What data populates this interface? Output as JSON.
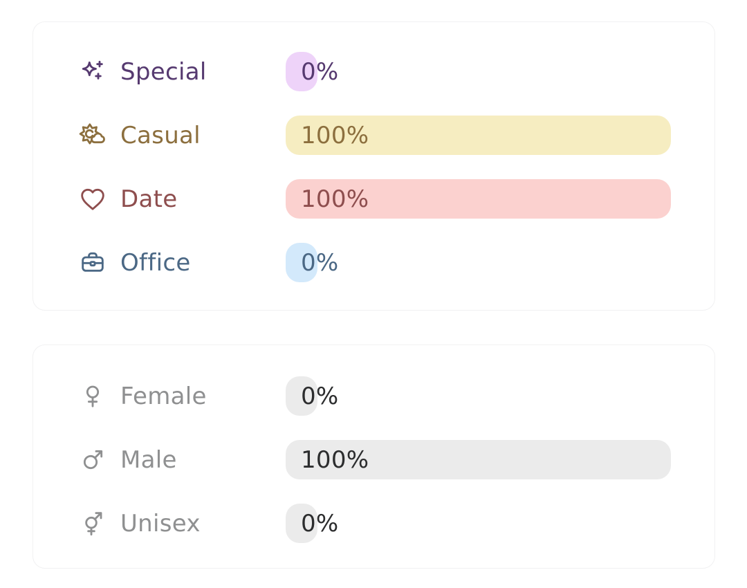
{
  "cards": [
    {
      "name": "occasion-stats-card",
      "rows": [
        {
          "icon": "sparkles-icon",
          "label": "Special",
          "value_pct": 0,
          "value_text": "0%",
          "label_color": "#563a70",
          "bar_color": "#eed3f9",
          "value_color": "#563a70"
        },
        {
          "icon": "sun-cloud-icon",
          "label": "Casual",
          "value_pct": 100,
          "value_text": "100%",
          "label_color": "#8c6f3e",
          "bar_color": "#f6edc1",
          "value_color": "#8c6f3e"
        },
        {
          "icon": "heart-icon",
          "label": "Date",
          "value_pct": 100,
          "value_text": "100%",
          "label_color": "#8e4e4e",
          "bar_color": "#fbd1cf",
          "value_color": "#8e4e4e"
        },
        {
          "icon": "briefcase-icon",
          "label": "Office",
          "value_pct": 0,
          "value_text": "0%",
          "label_color": "#4b6885",
          "bar_color": "#d3e9fb",
          "value_color": "#4b6885"
        }
      ]
    },
    {
      "name": "gender-stats-card",
      "rows": [
        {
          "icon": "female-icon",
          "label": "Female",
          "value_pct": 0,
          "value_text": "0%",
          "label_color": "#8f9091",
          "bar_color": "#ebebeb",
          "value_color": "#2c2d2e"
        },
        {
          "icon": "male-icon",
          "label": "Male",
          "value_pct": 100,
          "value_text": "100%",
          "label_color": "#8f9091",
          "bar_color": "#ebebeb",
          "value_color": "#2c2d2e"
        },
        {
          "icon": "unisex-icon",
          "label": "Unisex",
          "value_pct": 0,
          "value_text": "0%",
          "label_color": "#8f9091",
          "bar_color": "#ebebeb",
          "value_color": "#2c2d2e"
        }
      ]
    }
  ]
}
